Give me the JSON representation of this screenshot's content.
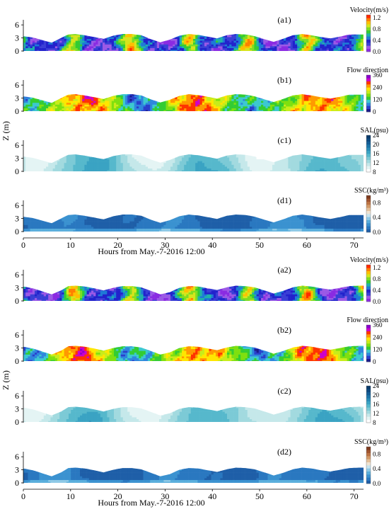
{
  "chart_data": {
    "type": "heatmap",
    "xlabel": "Hours from May.-7-2016 12:00",
    "ylabel": "Z (m)",
    "x_ticks": [
      0,
      10,
      20,
      30,
      40,
      50,
      60,
      70
    ],
    "y_ticks": [
      0,
      3,
      6
    ],
    "xlim": [
      0,
      72
    ],
    "ylim": [
      0,
      7
    ],
    "sites": [
      {
        "surface_profile": {
          "hours": [
            0,
            2,
            4,
            6,
            8,
            9.5,
            11,
            13,
            15,
            17,
            19,
            21,
            23,
            25,
            27,
            29,
            31,
            33,
            35,
            37,
            39,
            41,
            43,
            45,
            47,
            49,
            51,
            53,
            55,
            57,
            59,
            61,
            63,
            65,
            67,
            69,
            71,
            72
          ],
          "z": [
            3.4,
            3.1,
            2.5,
            1.9,
            3.0,
            3.8,
            3.9,
            3.6,
            3.2,
            2.8,
            3.5,
            3.9,
            3.9,
            3.6,
            2.7,
            2.0,
            2.6,
            3.5,
            3.9,
            3.7,
            3.3,
            2.9,
            3.6,
            3.9,
            3.8,
            3.4,
            2.7,
            2.1,
            2.8,
            3.6,
            3.9,
            3.6,
            3.2,
            2.9,
            3.3,
            3.8,
            3.8,
            3.8
          ]
        },
        "panels": [
          {
            "label": "(a1)",
            "variable": "Velocity(m/s)",
            "colorbar_ticks": [
              "0.0",
              "0.4",
              "0.8",
              "1.2"
            ],
            "colorbar_range": [
              0,
              1.3
            ],
            "colors": [
              "#8a2be2",
              "#9b59e6",
              "#3a3fd6",
              "#2222cc",
              "#1f7ad6",
              "#20b2aa",
              "#33cc33",
              "#7fdd22",
              "#d6e51c",
              "#ffbf00",
              "#ff7f00",
              "#ff2a00"
            ]
          },
          {
            "label": "(b1)",
            "variable": "Flow direction",
            "colorbar_ticks": [
              "0",
              "120",
              "240",
              "360"
            ],
            "colorbar_range": [
              0,
              360
            ],
            "colors": [
              "#1a1a8c",
              "#2a3fcc",
              "#2e86de",
              "#3cc8d0",
              "#33cc33",
              "#7fe00f",
              "#c8ec1a",
              "#ffe600",
              "#ff9900",
              "#ff3300",
              "#cc00cc",
              "#8800cc"
            ]
          },
          {
            "label": "(c1)",
            "variable": "SAL(psu)",
            "colorbar_ticks": [
              "8",
              "12",
              "16",
              "20",
              "24"
            ],
            "colorbar_range": [
              8,
              24
            ],
            "colors": [
              "#ffffff",
              "#e4f4f4",
              "#c5e8ea",
              "#a2dadf",
              "#7ccad6",
              "#56b8cc",
              "#3aa3c3",
              "#2a8cb8",
              "#1d75aa",
              "#155e96",
              "#0e4a80",
              "#0a3a6a"
            ]
          },
          {
            "label": "(d1)",
            "variable": "SSC(kg/m³)",
            "colorbar_ticks": [
              "0.0",
              "0.4",
              "0.8"
            ],
            "colorbar_range": [
              0,
              1
            ],
            "colors": [
              "#1f5fa8",
              "#2a78c0",
              "#3b92d0",
              "#5aaedc",
              "#8ec9e6",
              "#c7e4ef",
              "#efe3d2",
              "#e4c09a",
              "#d39a68",
              "#bd7444",
              "#a05530",
              "#7d3a1e"
            ]
          }
        ]
      },
      {
        "surface_profile": {
          "hours": [
            0,
            2,
            4,
            6,
            8,
            9.5,
            11,
            13,
            15,
            17,
            19,
            21,
            23,
            25,
            27,
            29,
            31,
            33,
            35,
            37,
            39,
            41,
            43,
            45,
            47,
            49,
            51,
            53,
            55,
            57,
            59,
            61,
            63,
            65,
            67,
            69,
            71,
            72
          ],
          "z": [
            3.3,
            2.9,
            2.2,
            1.5,
            2.4,
            3.4,
            3.5,
            3.3,
            2.9,
            2.4,
            3.0,
            3.4,
            3.4,
            3.1,
            2.3,
            1.5,
            2.0,
            3.0,
            3.4,
            3.3,
            2.9,
            2.5,
            3.1,
            3.5,
            3.4,
            3.1,
            2.4,
            1.7,
            2.3,
            3.1,
            3.5,
            3.3,
            2.9,
            2.6,
            3.0,
            3.4,
            3.5,
            3.5
          ]
        },
        "panels": [
          {
            "label": "(a2)",
            "variable": "Velocity(m/s)",
            "colorbar_ticks": [
              "0.0",
              "0.4",
              "0.8",
              "1.2"
            ],
            "colorbar_range": [
              0,
              1.3
            ],
            "colors": [
              "#8a2be2",
              "#9b59e6",
              "#3a3fd6",
              "#2222cc",
              "#1f7ad6",
              "#20b2aa",
              "#33cc33",
              "#7fdd22",
              "#d6e51c",
              "#ffbf00",
              "#ff7f00",
              "#ff2a00"
            ]
          },
          {
            "label": "(b2)",
            "variable": "Flow  direction",
            "colorbar_ticks": [
              "0",
              "120",
              "240",
              "360"
            ],
            "colorbar_range": [
              0,
              360
            ],
            "colors": [
              "#1a1a8c",
              "#2a3fcc",
              "#2e86de",
              "#3cc8d0",
              "#33cc33",
              "#7fe00f",
              "#c8ec1a",
              "#ffe600",
              "#ff9900",
              "#ff3300",
              "#cc00cc",
              "#8800cc"
            ]
          },
          {
            "label": "(c2)",
            "variable": "SAL(psu)",
            "colorbar_ticks": [
              "8",
              "12",
              "16",
              "20",
              "24"
            ],
            "colorbar_range": [
              8,
              24
            ],
            "colors": [
              "#ffffff",
              "#e4f4f4",
              "#c5e8ea",
              "#a2dadf",
              "#7ccad6",
              "#56b8cc",
              "#3aa3c3",
              "#2a8cb8",
              "#1d75aa",
              "#155e96",
              "#0e4a80",
              "#0a3a6a"
            ]
          },
          {
            "label": "(d2)",
            "variable": "SSC(kg/m³)",
            "colorbar_ticks": [
              "0.0",
              "0.4",
              "0.8"
            ],
            "colorbar_range": [
              0,
              1
            ],
            "colors": [
              "#1f5fa8",
              "#2a78c0",
              "#3b92d0",
              "#5aaedc",
              "#8ec9e6",
              "#c7e4ef",
              "#efe3d2",
              "#e4c09a",
              "#d39a68",
              "#bd7444",
              "#a05530",
              "#7d3a1e"
            ]
          }
        ]
      }
    ]
  }
}
